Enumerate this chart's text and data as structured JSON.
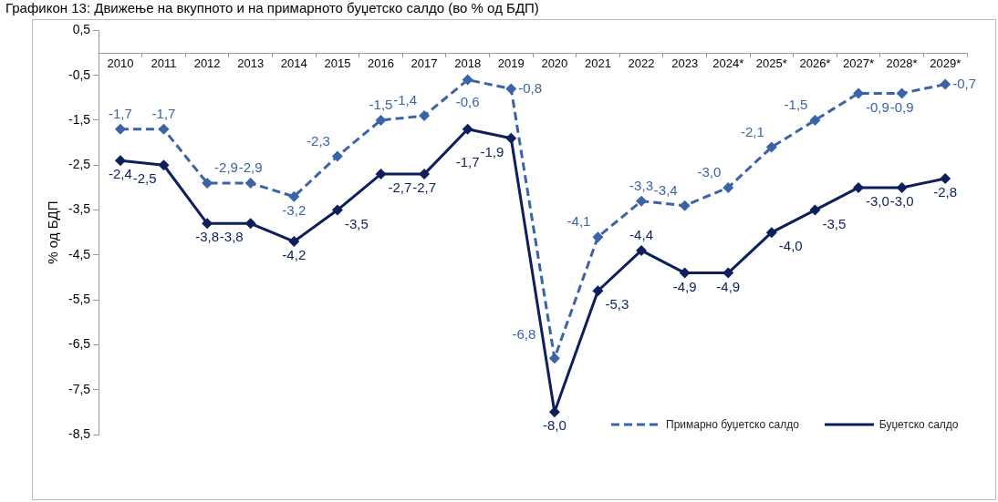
{
  "chart_data": {
    "type": "line",
    "title": "Графикон 13: Движење на вкупното и на примарното буџетско салдо (во % од БДП)",
    "ylabel": "% од БДП",
    "categories": [
      "2010",
      "2011",
      "2012",
      "2013",
      "2014",
      "2015",
      "2016",
      "2017",
      "2018",
      "2019",
      "2020",
      "2021",
      "2022",
      "2023",
      "2024*",
      "2025*",
      "2026*",
      "2027*",
      "2028*",
      "2029*"
    ],
    "series": [
      {
        "name": "Примарно  буџетско салдо",
        "color": "#3b63a8",
        "line_style": "dashed",
        "values": [
          -1.7,
          -1.7,
          -2.9,
          -2.9,
          -3.2,
          -2.3,
          -1.5,
          -1.4,
          -0.6,
          -0.8,
          -6.8,
          -4.1,
          -3.3,
          -3.4,
          -3.0,
          -2.1,
          -1.5,
          -0.9,
          -0.9,
          -0.7
        ],
        "value_labels": [
          "-1,7",
          "-1,7",
          "-2,9",
          "-2,9",
          "-3,2",
          "-2,3",
          "-1,5",
          "-1,4",
          "-0,6",
          "-0,8",
          "-6,8",
          "-4,1",
          "-3,3",
          "-3,4",
          "-3,0",
          "-2,1",
          "-1,5",
          "-0,9",
          "-0,9",
          "-0,7"
        ]
      },
      {
        "name": "Буџетско салдо",
        "color": "#0d1f5c",
        "line_style": "solid",
        "values": [
          -2.4,
          -2.5,
          -3.8,
          -3.8,
          -4.2,
          -3.5,
          -2.7,
          -2.7,
          -1.7,
          -1.9,
          -8.0,
          -5.3,
          -4.4,
          -4.9,
          -4.9,
          -4.0,
          -3.5,
          -3.0,
          -3.0,
          -2.8
        ],
        "value_labels": [
          "-2,4",
          "-2,5",
          "-3,8",
          "-3,8",
          "-4,2",
          "-3,5",
          "-2,7",
          "-2,7",
          "-1,7",
          "-1,9",
          "-8,0",
          "-5,3",
          "-4,4",
          "-4,9",
          "-4,9",
          "-4,0",
          "-3,5",
          "-3,0",
          "-3,0",
          "-2,8"
        ]
      }
    ],
    "ylim": [
      -8.5,
      0.5
    ],
    "yticks": [
      {
        "value": 0.5,
        "label": "0,5"
      },
      {
        "value": -0.5,
        "label": "-0,5"
      },
      {
        "value": -1.5,
        "label": "-1,5"
      },
      {
        "value": -2.5,
        "label": "-2,5"
      },
      {
        "value": -3.5,
        "label": "-3,5"
      },
      {
        "value": -4.5,
        "label": "-4,5"
      },
      {
        "value": -5.5,
        "label": "-5,5"
      },
      {
        "value": -6.5,
        "label": "-6,5"
      },
      {
        "value": -7.5,
        "label": "-7,5"
      },
      {
        "value": -8.5,
        "label": "-8,5"
      }
    ],
    "marker": "diamond",
    "grid": false,
    "legend": "bottom right"
  }
}
